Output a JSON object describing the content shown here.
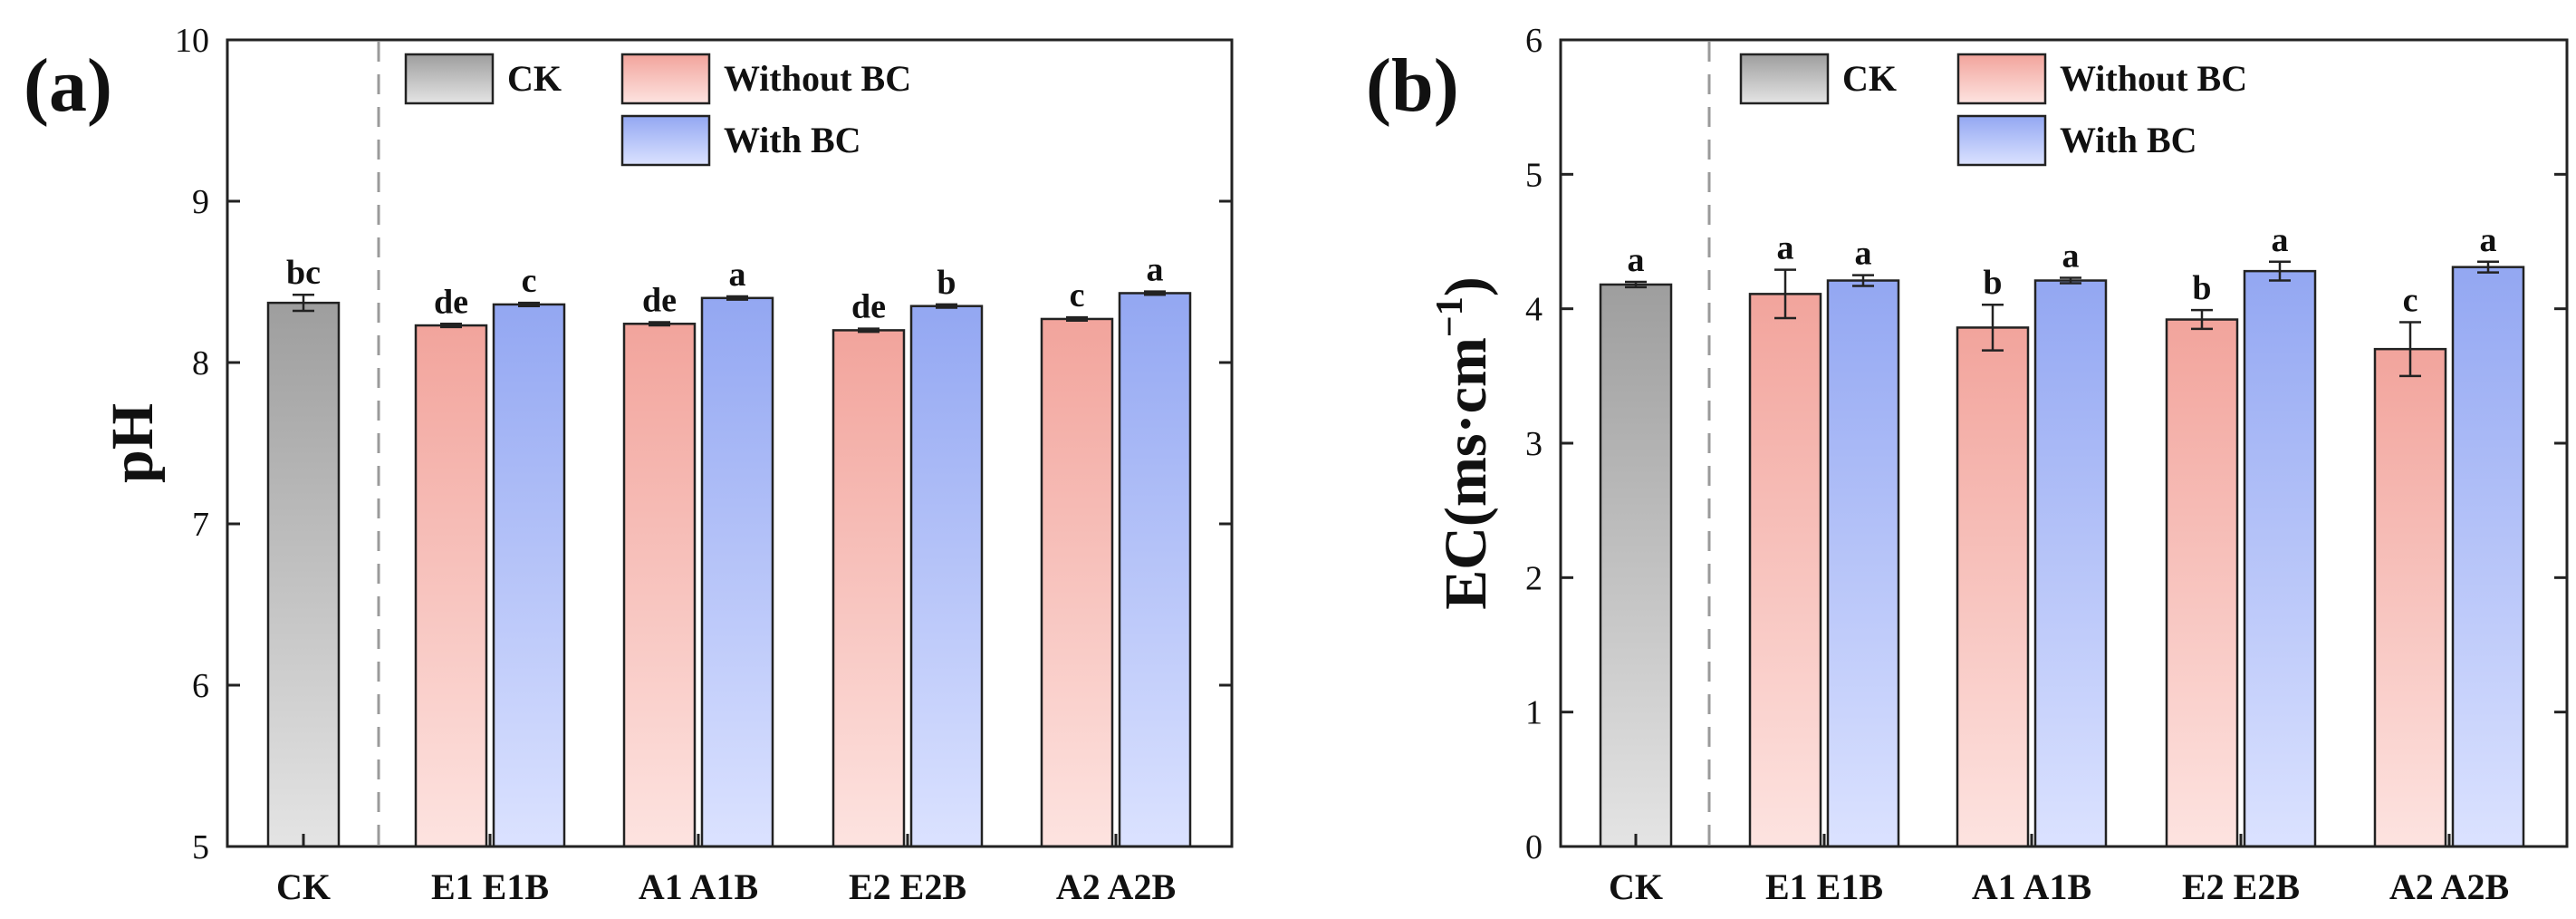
{
  "colors": {
    "ck_top": "#9e9e9e",
    "ck_bottom": "#e4e4e4",
    "without_top": "#f2a49c",
    "without_bottom": "#fde3e0",
    "with_top": "#93a7f2",
    "with_bottom": "#dbe2ff",
    "axis": "#222222",
    "divider": "#9a9a9a"
  },
  "chart_data": [
    {
      "type": "bar",
      "panel_label": "(a)",
      "title": "",
      "xlabel": "",
      "ylabel": "pH",
      "ylim": [
        5,
        10
      ],
      "yticks": [
        5,
        6,
        7,
        8,
        9,
        10
      ],
      "legend": [
        {
          "key": "ck",
          "label": "CK"
        },
        {
          "key": "without",
          "label": "Without BC"
        },
        {
          "key": "with",
          "label": "With BC"
        }
      ],
      "groups": [
        {
          "label": "CK",
          "bars": [
            {
              "name": "CK",
              "series": "ck",
              "value": 8.37,
              "error": 0.05,
              "sig": "bc"
            }
          ]
        },
        {
          "label": "E1 E1B",
          "bars": [
            {
              "name": "E1",
              "series": "without",
              "value": 8.23,
              "error": 0.01,
              "sig": "de"
            },
            {
              "name": "E1B",
              "series": "with",
              "value": 8.36,
              "error": 0.01,
              "sig": "c"
            }
          ]
        },
        {
          "label": "A1 A1B",
          "bars": [
            {
              "name": "A1",
              "series": "without",
              "value": 8.24,
              "error": 0.01,
              "sig": "de"
            },
            {
              "name": "A1B",
              "series": "with",
              "value": 8.4,
              "error": 0.01,
              "sig": "a"
            }
          ]
        },
        {
          "label": "E2 E2B",
          "bars": [
            {
              "name": "E2",
              "series": "without",
              "value": 8.2,
              "error": 0.01,
              "sig": "de"
            },
            {
              "name": "E2B",
              "series": "with",
              "value": 8.35,
              "error": 0.01,
              "sig": "b"
            }
          ]
        },
        {
          "label": "A2 A2B",
          "bars": [
            {
              "name": "A2",
              "series": "without",
              "value": 8.27,
              "error": 0.01,
              "sig": "c"
            },
            {
              "name": "A2B",
              "series": "with",
              "value": 8.43,
              "error": 0.01,
              "sig": "a"
            }
          ]
        }
      ]
    },
    {
      "type": "bar",
      "panel_label": "(b)",
      "title": "",
      "xlabel": "",
      "ylabel": "EC(ms·cm",
      "ylabel_sup": "−1",
      "ylabel_close": ")",
      "ylim": [
        0,
        6
      ],
      "yticks": [
        0,
        1,
        2,
        3,
        4,
        5,
        6
      ],
      "legend": [
        {
          "key": "ck",
          "label": "CK"
        },
        {
          "key": "without",
          "label": "Without BC"
        },
        {
          "key": "with",
          "label": "With BC"
        }
      ],
      "groups": [
        {
          "label": "CK",
          "bars": [
            {
              "name": "CK",
              "series": "ck",
              "value": 4.18,
              "error": 0.02,
              "sig": "a"
            }
          ]
        },
        {
          "label": "E1 E1B",
          "bars": [
            {
              "name": "E1",
              "series": "without",
              "value": 4.11,
              "error": 0.18,
              "sig": "a"
            },
            {
              "name": "E1B",
              "series": "with",
              "value": 4.21,
              "error": 0.04,
              "sig": "a"
            }
          ]
        },
        {
          "label": "A1 A1B",
          "bars": [
            {
              "name": "A1",
              "series": "without",
              "value": 3.86,
              "error": 0.17,
              "sig": "b"
            },
            {
              "name": "A1B",
              "series": "with",
              "value": 4.21,
              "error": 0.02,
              "sig": "a"
            }
          ]
        },
        {
          "label": "E2 E2B",
          "bars": [
            {
              "name": "E2",
              "series": "without",
              "value": 3.92,
              "error": 0.07,
              "sig": "b"
            },
            {
              "name": "E2B",
              "series": "with",
              "value": 4.28,
              "error": 0.07,
              "sig": "a"
            }
          ]
        },
        {
          "label": "A2 A2B",
          "bars": [
            {
              "name": "A2",
              "series": "without",
              "value": 3.7,
              "error": 0.2,
              "sig": "c"
            },
            {
              "name": "A2B",
              "series": "with",
              "value": 4.31,
              "error": 0.04,
              "sig": "a"
            }
          ]
        }
      ]
    }
  ]
}
